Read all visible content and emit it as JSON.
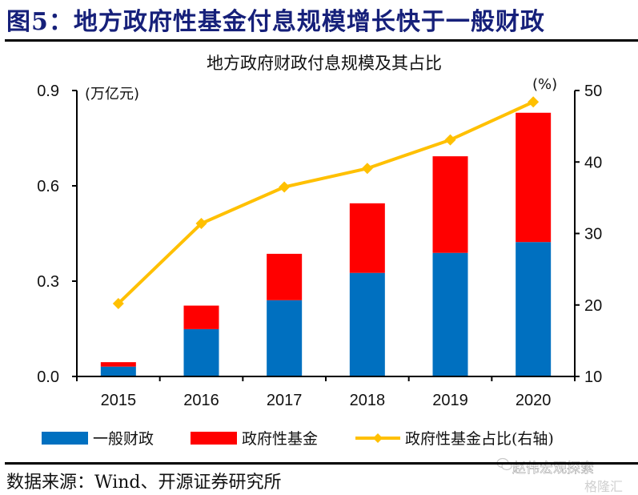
{
  "figure": {
    "title": "图5：地方政府性基金付息规模增长快于一般财政",
    "source": "数据来源：Wind、开源证券研究所"
  },
  "watermark": {
    "text1": "赵伟宏观探索",
    "text2": "格隆汇"
  },
  "chart_data": {
    "type": "bar",
    "subtype": "stacked-bar-with-line",
    "title": "地方政府财政付息规模及其占比",
    "categories": [
      "2015",
      "2016",
      "2017",
      "2018",
      "2019",
      "2020"
    ],
    "series": [
      {
        "name": "一般财政",
        "type": "bar",
        "axis": "left",
        "color": "#0070c0",
        "values": [
          0.031,
          0.149,
          0.24,
          0.326,
          0.389,
          0.423
        ]
      },
      {
        "name": "政府性基金",
        "type": "bar",
        "axis": "left",
        "color": "#ff0000",
        "values": [
          0.014,
          0.074,
          0.146,
          0.219,
          0.304,
          0.407
        ]
      },
      {
        "name": "政府性基金占比(右轴)",
        "type": "line",
        "axis": "right",
        "color": "#ffc000",
        "marker": "diamond",
        "values": [
          20.2,
          31.4,
          36.5,
          39.1,
          43.1,
          48.4
        ]
      }
    ],
    "y_left": {
      "label": "(万亿元)",
      "ylim": [
        0.0,
        0.9
      ],
      "ticks": [
        0.0,
        0.3,
        0.6,
        0.9
      ],
      "tick_labels": [
        "0.0",
        "0.3",
        "0.6",
        "0.9"
      ]
    },
    "y_right": {
      "label": "(%)",
      "ylim": [
        10,
        50
      ],
      "ticks": [
        10,
        20,
        30,
        40,
        50
      ],
      "tick_labels": [
        "10",
        "20",
        "30",
        "40",
        "50"
      ]
    },
    "xlabel": "",
    "grid": false,
    "legend_position": "bottom"
  }
}
